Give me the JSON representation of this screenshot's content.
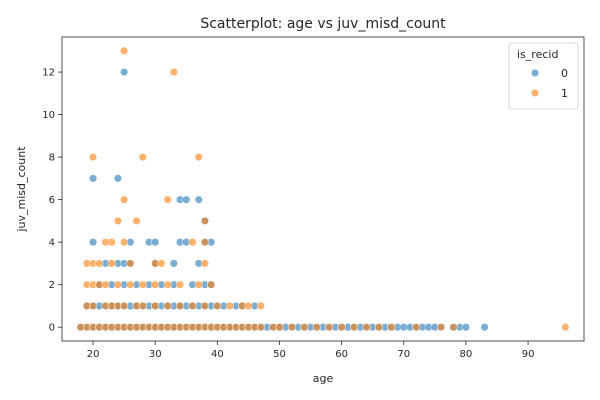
{
  "chart_data": {
    "type": "scatter",
    "title": "Scatterplot: age vs juv_misd_count",
    "xlabel": "age",
    "ylabel": "juv_misd_count",
    "xlim": [
      15,
      99
    ],
    "ylim": [
      -0.65,
      13.65
    ],
    "xticks": [
      "20",
      "30",
      "40",
      "50",
      "60",
      "70",
      "80",
      "90"
    ],
    "yticks": [
      "0",
      "2",
      "4",
      "6",
      "8",
      "10",
      "12"
    ],
    "grid": false,
    "legend": {
      "title": "is_recid",
      "placement": "top-right"
    },
    "series": [
      {
        "name": "0",
        "color": "#1f77b4",
        "points": [
          [
            20,
            7
          ],
          [
            24,
            7
          ],
          [
            25,
            12
          ],
          [
            37,
            6
          ],
          [
            34,
            6
          ],
          [
            35,
            6
          ],
          [
            38,
            5
          ],
          [
            38,
            4
          ],
          [
            39,
            4
          ],
          [
            34,
            4
          ],
          [
            26,
            4
          ],
          [
            29,
            4
          ],
          [
            20,
            4
          ],
          [
            30,
            4
          ],
          [
            35,
            4
          ],
          [
            37,
            3
          ],
          [
            30,
            3
          ],
          [
            33,
            3
          ],
          [
            24,
            3
          ],
          [
            22,
            3
          ],
          [
            25,
            3
          ],
          [
            26,
            3
          ],
          [
            21,
            2
          ],
          [
            23,
            2
          ],
          [
            25,
            2
          ],
          [
            27,
            2
          ],
          [
            29,
            2
          ],
          [
            31,
            2
          ],
          [
            33,
            2
          ],
          [
            36,
            2
          ],
          [
            38,
            2
          ],
          [
            39,
            2
          ],
          [
            19,
            1
          ],
          [
            20,
            1
          ],
          [
            21,
            1
          ],
          [
            22,
            1
          ],
          [
            23,
            1
          ],
          [
            24,
            1
          ],
          [
            25,
            1
          ],
          [
            26,
            1
          ],
          [
            27,
            1
          ],
          [
            28,
            1
          ],
          [
            29,
            1
          ],
          [
            30,
            1
          ],
          [
            31,
            1
          ],
          [
            32,
            1
          ],
          [
            33,
            1
          ],
          [
            34,
            1
          ],
          [
            35,
            1
          ],
          [
            36,
            1
          ],
          [
            37,
            1
          ],
          [
            38,
            1
          ],
          [
            39,
            1
          ],
          [
            40,
            1
          ],
          [
            41,
            1
          ],
          [
            43,
            1
          ],
          [
            44,
            1
          ],
          [
            46,
            1
          ],
          [
            18,
            0
          ],
          [
            19,
            0
          ],
          [
            20,
            0
          ],
          [
            21,
            0
          ],
          [
            22,
            0
          ],
          [
            23,
            0
          ],
          [
            24,
            0
          ],
          [
            25,
            0
          ],
          [
            26,
            0
          ],
          [
            27,
            0
          ],
          [
            28,
            0
          ],
          [
            29,
            0
          ],
          [
            30,
            0
          ],
          [
            31,
            0
          ],
          [
            32,
            0
          ],
          [
            33,
            0
          ],
          [
            34,
            0
          ],
          [
            35,
            0
          ],
          [
            36,
            0
          ],
          [
            37,
            0
          ],
          [
            38,
            0
          ],
          [
            39,
            0
          ],
          [
            40,
            0
          ],
          [
            41,
            0
          ],
          [
            42,
            0
          ],
          [
            43,
            0
          ],
          [
            44,
            0
          ],
          [
            45,
            0
          ],
          [
            46,
            0
          ],
          [
            47,
            0
          ],
          [
            48,
            0
          ],
          [
            49,
            0
          ],
          [
            50,
            0
          ],
          [
            51,
            0
          ],
          [
            52,
            0
          ],
          [
            53,
            0
          ],
          [
            54,
            0
          ],
          [
            55,
            0
          ],
          [
            56,
            0
          ],
          [
            57,
            0
          ],
          [
            58,
            0
          ],
          [
            59,
            0
          ],
          [
            60,
            0
          ],
          [
            61,
            0
          ],
          [
            62,
            0
          ],
          [
            63,
            0
          ],
          [
            64,
            0
          ],
          [
            65,
            0
          ],
          [
            66,
            0
          ],
          [
            67,
            0
          ],
          [
            68,
            0
          ],
          [
            69,
            0
          ],
          [
            70,
            0
          ],
          [
            71,
            0
          ],
          [
            72,
            0
          ],
          [
            73,
            0
          ],
          [
            74,
            0
          ],
          [
            75,
            0
          ],
          [
            76,
            0
          ],
          [
            78,
            0
          ],
          [
            79,
            0
          ],
          [
            80,
            0
          ],
          [
            83,
            0
          ]
        ]
      },
      {
        "name": "1",
        "color": "#ff7f0e",
        "points": [
          [
            25,
            13
          ],
          [
            33,
            12
          ],
          [
            20,
            8
          ],
          [
            28,
            8
          ],
          [
            37,
            8
          ],
          [
            32,
            6
          ],
          [
            25,
            6
          ],
          [
            38,
            5
          ],
          [
            24,
            5
          ],
          [
            27,
            5
          ],
          [
            38,
            4
          ],
          [
            23,
            4
          ],
          [
            25,
            4
          ],
          [
            36,
            4
          ],
          [
            22,
            4
          ],
          [
            30,
            3
          ],
          [
            23,
            3
          ],
          [
            31,
            3
          ],
          [
            19,
            3
          ],
          [
            20,
            3
          ],
          [
            21,
            3
          ],
          [
            26,
            3
          ],
          [
            38,
            3
          ],
          [
            19,
            2
          ],
          [
            20,
            2
          ],
          [
            21,
            2
          ],
          [
            22,
            2
          ],
          [
            24,
            2
          ],
          [
            26,
            2
          ],
          [
            28,
            2
          ],
          [
            30,
            2
          ],
          [
            32,
            2
          ],
          [
            34,
            2
          ],
          [
            37,
            2
          ],
          [
            39,
            2
          ],
          [
            19,
            1
          ],
          [
            20,
            1
          ],
          [
            22,
            1
          ],
          [
            23,
            1
          ],
          [
            24,
            1
          ],
          [
            25,
            1
          ],
          [
            27,
            1
          ],
          [
            28,
            1
          ],
          [
            30,
            1
          ],
          [
            32,
            1
          ],
          [
            34,
            1
          ],
          [
            36,
            1
          ],
          [
            38,
            1
          ],
          [
            40,
            1
          ],
          [
            42,
            1
          ],
          [
            44,
            1
          ],
          [
            45,
            1
          ],
          [
            47,
            1
          ],
          [
            18,
            0
          ],
          [
            19,
            0
          ],
          [
            20,
            0
          ],
          [
            21,
            0
          ],
          [
            22,
            0
          ],
          [
            23,
            0
          ],
          [
            24,
            0
          ],
          [
            25,
            0
          ],
          [
            26,
            0
          ],
          [
            27,
            0
          ],
          [
            28,
            0
          ],
          [
            29,
            0
          ],
          [
            30,
            0
          ],
          [
            31,
            0
          ],
          [
            32,
            0
          ],
          [
            33,
            0
          ],
          [
            34,
            0
          ],
          [
            35,
            0
          ],
          [
            36,
            0
          ],
          [
            37,
            0
          ],
          [
            38,
            0
          ],
          [
            39,
            0
          ],
          [
            40,
            0
          ],
          [
            41,
            0
          ],
          [
            42,
            0
          ],
          [
            43,
            0
          ],
          [
            44,
            0
          ],
          [
            45,
            0
          ],
          [
            46,
            0
          ],
          [
            47,
            0
          ],
          [
            49,
            0
          ],
          [
            50,
            0
          ],
          [
            52,
            0
          ],
          [
            54,
            0
          ],
          [
            56,
            0
          ],
          [
            58,
            0
          ],
          [
            60,
            0
          ],
          [
            62,
            0
          ],
          [
            64,
            0
          ],
          [
            66,
            0
          ],
          [
            68,
            0
          ],
          [
            72,
            0
          ],
          [
            76,
            0
          ],
          [
            78,
            0
          ],
          [
            96,
            0
          ]
        ]
      }
    ]
  }
}
